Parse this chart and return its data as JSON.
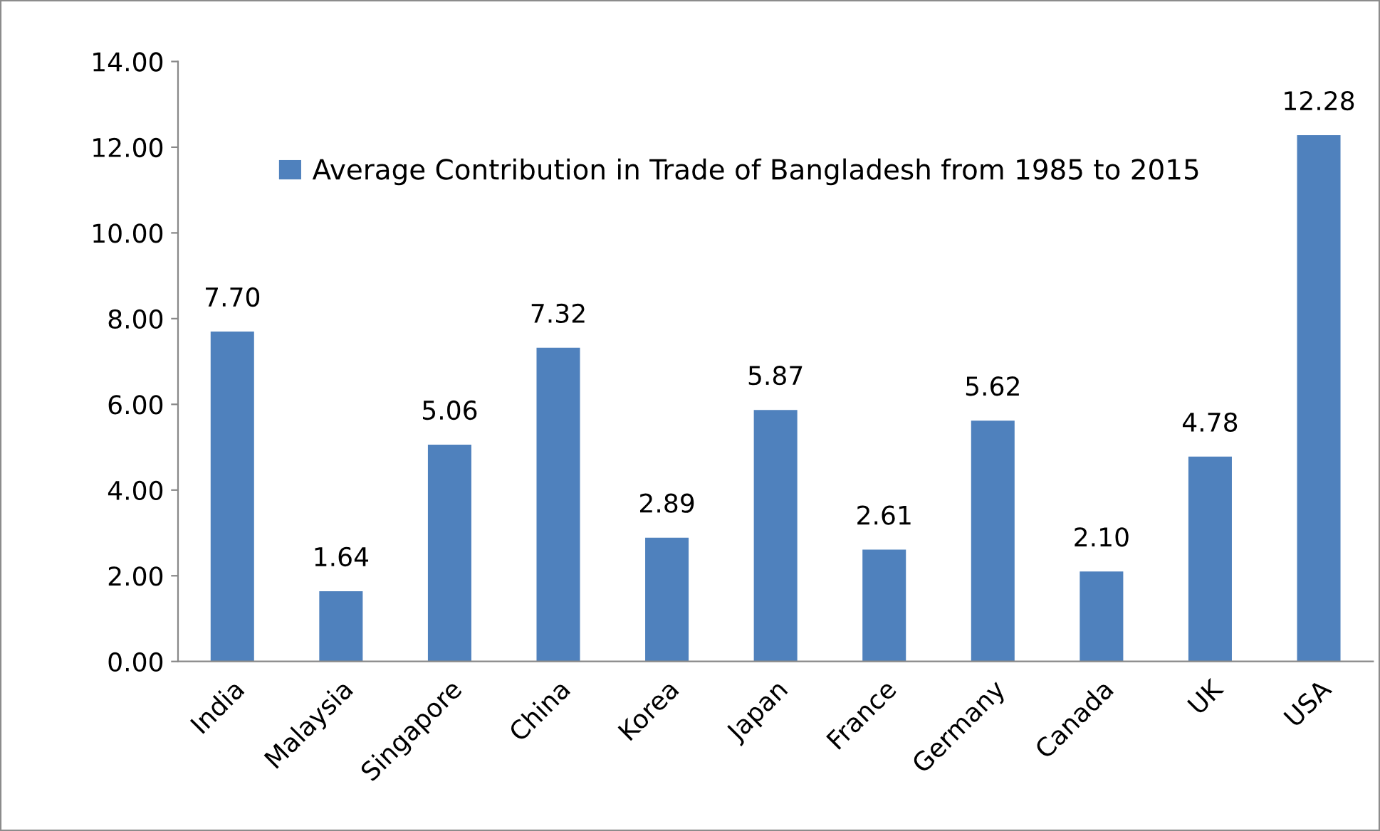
{
  "chart_data": {
    "type": "bar",
    "categories": [
      "India",
      "Malaysia",
      "Singapore",
      "China",
      "Korea",
      "Japan",
      "France",
      "Germany",
      "Canada",
      "UK",
      "USA"
    ],
    "series": [
      {
        "name": "Average Contribution in Trade of Bangladesh from 1985 to 2015",
        "color": "#4f81bd",
        "values": [
          7.7,
          1.64,
          5.06,
          7.32,
          2.89,
          5.87,
          2.61,
          5.62,
          2.1,
          4.78,
          12.28
        ],
        "value_labels": [
          "7.70",
          "1.64",
          "5.06",
          "7.32",
          "2.89",
          "5.87",
          "2.61",
          "5.62",
          "2.10",
          "4.78",
          "12.28"
        ]
      }
    ],
    "ylim": [
      0,
      14
    ],
    "yticks": [
      {
        "value": 0,
        "label": "0.00"
      },
      {
        "value": 2,
        "label": "2.00"
      },
      {
        "value": 4,
        "label": "4.00"
      },
      {
        "value": 6,
        "label": "6.00"
      },
      {
        "value": 8,
        "label": "8.00"
      },
      {
        "value": 10,
        "label": "10.00"
      },
      {
        "value": 12,
        "label": "12.00"
      },
      {
        "value": 14,
        "label": "14.00"
      }
    ],
    "grid": false,
    "legend": "top"
  }
}
